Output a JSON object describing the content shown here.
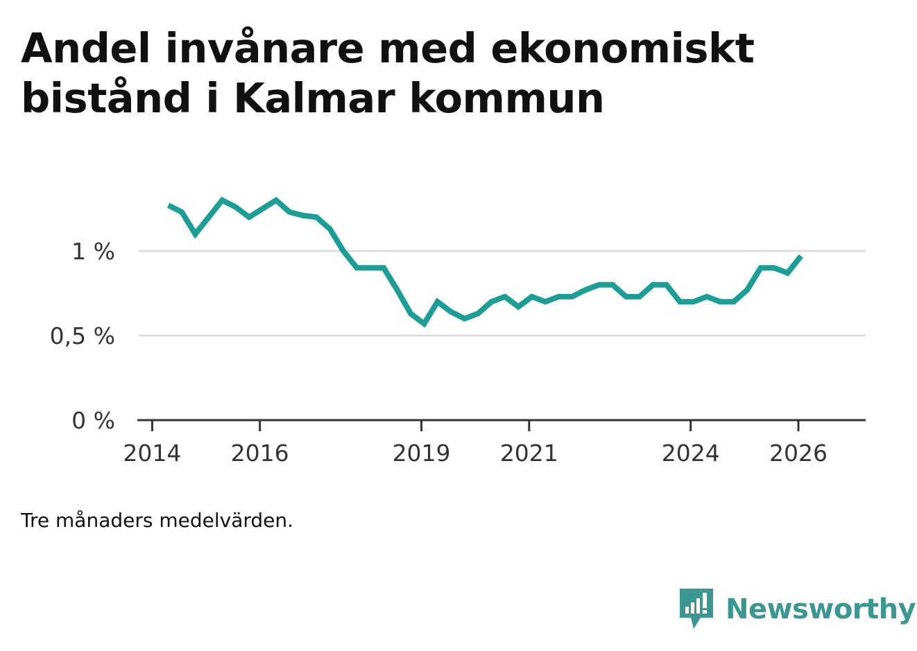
{
  "title": "Andel invånare med ekonomiskt bistånd i Kalmar kommun",
  "note": "Tre månaders medelvärden.",
  "brand": {
    "name": "Newsworthy",
    "logo_icon": "bar-chart-speech-bubble-icon",
    "color": "#3a9890"
  },
  "colors": {
    "line": "#1a9e96",
    "grid": "#dddddd",
    "axis": "#333333"
  },
  "chart_data": {
    "type": "line",
    "title": "Andel invånare med ekonomiskt bistånd i Kalmar kommun",
    "xlabel": "",
    "ylabel": "",
    "x_unit": "year",
    "xlim": [
      2013.75,
      2027.25
    ],
    "ylim": [
      0,
      1.0
    ],
    "y_ticks": [
      {
        "value": 0,
        "label": "0 %"
      },
      {
        "value": 0.5,
        "label": "0,5 %"
      },
      {
        "value": 1.0,
        "label": "1 %"
      }
    ],
    "x_ticks": [
      {
        "value": 2014,
        "label": "2014"
      },
      {
        "value": 2016,
        "label": "2016"
      },
      {
        "value": 2019,
        "label": "2019"
      },
      {
        "value": 2021,
        "label": "2021"
      },
      {
        "value": 2024,
        "label": "2024"
      },
      {
        "value": 2026,
        "label": "2026"
      }
    ],
    "grid": true,
    "series": [
      {
        "name": "Andel invånare med ekonomiskt bistånd",
        "x": [
          2014.3,
          2014.55,
          2014.8,
          2015.05,
          2015.3,
          2015.55,
          2015.8,
          2016.05,
          2016.3,
          2016.55,
          2016.8,
          2017.05,
          2017.3,
          2017.55,
          2017.8,
          2018.05,
          2018.3,
          2018.55,
          2018.8,
          2019.05,
          2019.3,
          2019.55,
          2019.8,
          2020.05,
          2020.3,
          2020.55,
          2020.8,
          2021.05,
          2021.3,
          2021.55,
          2021.8,
          2022.05,
          2022.3,
          2022.55,
          2022.8,
          2023.05,
          2023.3,
          2023.55,
          2023.8,
          2024.05,
          2024.3,
          2024.55,
          2024.8,
          2025.05,
          2025.3,
          2025.55,
          2025.8,
          2026.05
        ],
        "values": [
          1.27,
          1.23,
          1.1,
          1.2,
          1.3,
          1.26,
          1.2,
          1.25,
          1.3,
          1.23,
          1.21,
          1.2,
          1.13,
          1.0,
          0.9,
          0.9,
          0.9,
          0.77,
          0.63,
          0.57,
          0.7,
          0.64,
          0.6,
          0.63,
          0.7,
          0.73,
          0.67,
          0.73,
          0.7,
          0.73,
          0.73,
          0.77,
          0.8,
          0.8,
          0.73,
          0.73,
          0.8,
          0.8,
          0.7,
          0.7,
          0.73,
          0.7,
          0.7,
          0.77,
          0.9,
          0.9,
          0.87,
          0.97
        ]
      }
    ]
  }
}
